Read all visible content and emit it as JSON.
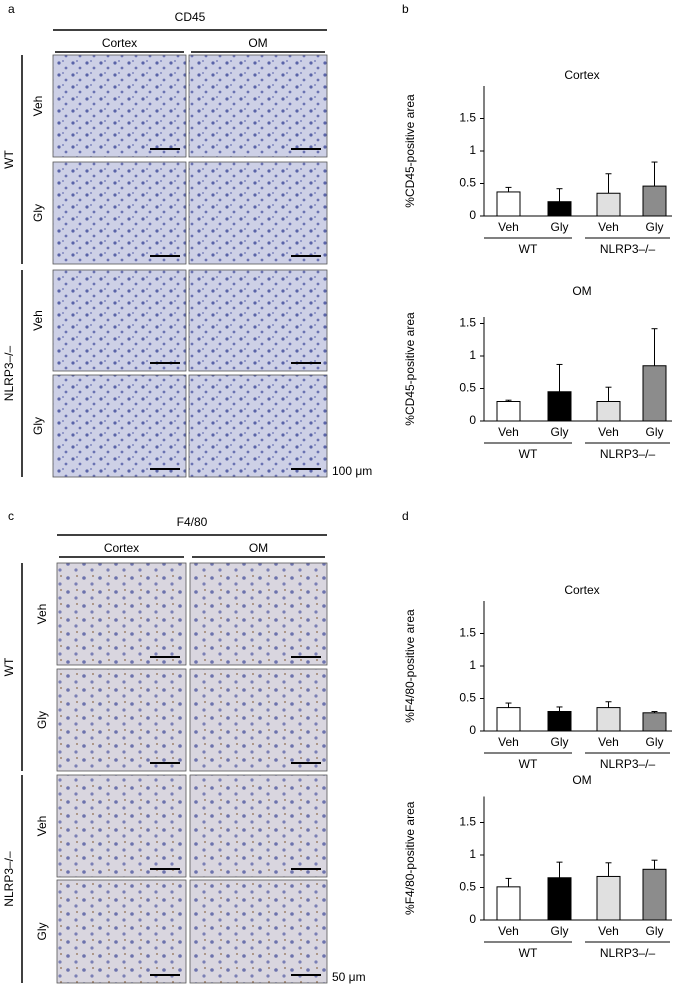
{
  "figure": {
    "panel_labels": [
      "a",
      "b",
      "c",
      "d"
    ],
    "micrographs": [
      {
        "stain": "CD45",
        "columns": [
          "Cortex",
          "OM"
        ],
        "groups": [
          "WT",
          "NLRP3–/–"
        ],
        "rows": [
          "Veh",
          "Gly",
          "Veh",
          "Gly"
        ],
        "scale": "100 μm"
      },
      {
        "stain": "F4/80",
        "columns": [
          "Cortex",
          "OM"
        ],
        "groups": [
          "WT",
          "NLRP3–/–"
        ],
        "rows": [
          "Veh",
          "Gly",
          "Veh",
          "Gly"
        ],
        "scale": "50 μm"
      }
    ]
  },
  "chart_data": [
    {
      "type": "bar",
      "title": "Cortex",
      "ylabel": "%CD45-positive area",
      "categories": [
        "Veh",
        "Gly",
        "Veh",
        "Gly"
      ],
      "groups": [
        "WT",
        "NLRP3–/–"
      ],
      "colors": [
        "#ffffff",
        "#000000",
        "#e0e0e0",
        "#8c8c8c"
      ],
      "values": [
        0.37,
        0.22,
        0.35,
        0.46
      ],
      "errors": [
        0.07,
        0.2,
        0.3,
        0.37
      ],
      "ylim": [
        0,
        2
      ],
      "yticks": [
        0,
        0.5,
        1,
        1.5
      ]
    },
    {
      "type": "bar",
      "title": "OM",
      "ylabel": "%CD45-positive area",
      "categories": [
        "Veh",
        "Gly",
        "Veh",
        "Gly"
      ],
      "groups": [
        "WT",
        "NLRP3–/–"
      ],
      "colors": [
        "#ffffff",
        "#000000",
        "#e0e0e0",
        "#8c8c8c"
      ],
      "values": [
        0.3,
        0.45,
        0.3,
        0.85
      ],
      "errors": [
        0.02,
        0.42,
        0.22,
        0.57
      ],
      "ylim": [
        0,
        1.6
      ],
      "yticks": [
        0,
        0.5,
        1,
        1.5
      ]
    },
    {
      "type": "bar",
      "title": "Cortex",
      "ylabel": "%F4/80-positive area",
      "categories": [
        "Veh",
        "Gly",
        "Veh",
        "Gly"
      ],
      "groups": [
        "WT",
        "NLRP3–/–"
      ],
      "colors": [
        "#ffffff",
        "#000000",
        "#e0e0e0",
        "#8c8c8c"
      ],
      "values": [
        0.36,
        0.3,
        0.36,
        0.28
      ],
      "errors": [
        0.07,
        0.07,
        0.09,
        0.02
      ],
      "ylim": [
        0,
        2
      ],
      "yticks": [
        0,
        0.5,
        1,
        1.5
      ]
    },
    {
      "type": "bar",
      "title": "OM",
      "ylabel": "%F4/80-positive area",
      "categories": [
        "Veh",
        "Gly",
        "Veh",
        "Gly"
      ],
      "groups": [
        "WT",
        "NLRP3–/–"
      ],
      "colors": [
        "#ffffff",
        "#000000",
        "#e0e0e0",
        "#8c8c8c"
      ],
      "values": [
        0.51,
        0.65,
        0.67,
        0.78
      ],
      "errors": [
        0.13,
        0.24,
        0.21,
        0.14
      ],
      "ylim": [
        0,
        1.9
      ],
      "yticks": [
        0,
        0.5,
        1,
        1.5
      ]
    }
  ]
}
